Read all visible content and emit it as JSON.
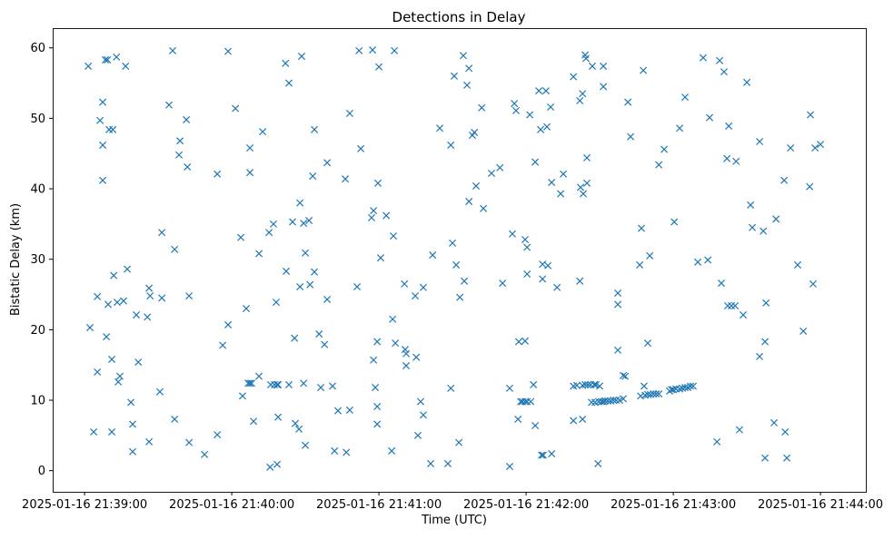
{
  "chart_data": {
    "type": "scatter",
    "title": "Detections in Delay",
    "xlabel": "Time (UTC)",
    "ylabel": "Bistatic Delay (km)",
    "x_units": "seconds after 2025-01-16 21:39:00",
    "xlim": [
      -13,
      318.5
    ],
    "ylim": [
      -3.0,
      62.8
    ],
    "xticks": [
      0,
      60,
      120,
      180,
      240,
      300
    ],
    "xtick_labels": [
      "2025-01-16 21:39:00",
      "2025-01-16 21:40:00",
      "2025-01-16 21:41:00",
      "2025-01-16 21:42:00",
      "2025-01-16 21:43:00",
      "2025-01-16 21:44:00"
    ],
    "yticks": [
      0,
      10,
      20,
      30,
      40,
      50,
      60
    ],
    "ytick_labels": [
      "0",
      "10",
      "20",
      "30",
      "40",
      "50",
      "60"
    ],
    "grid": false,
    "marker": "x",
    "color": "#1f77b4",
    "points": [
      [
        1.5,
        57.4
      ],
      [
        2.2,
        20.3
      ],
      [
        3.7,
        5.5
      ],
      [
        5.2,
        24.7
      ],
      [
        5.2,
        14.0
      ],
      [
        6.3,
        49.7
      ],
      [
        7.4,
        52.3
      ],
      [
        7.4,
        46.2
      ],
      [
        7.4,
        41.2
      ],
      [
        8.5,
        58.3
      ],
      [
        9.3,
        58.3
      ],
      [
        8.9,
        19.0
      ],
      [
        9.6,
        23.6
      ],
      [
        10,
        48.4
      ],
      [
        11.5,
        48.4
      ],
      [
        11.1,
        15.8
      ],
      [
        11.1,
        5.5
      ],
      [
        11.9,
        27.7
      ],
      [
        13,
        58.7
      ],
      [
        13.3,
        23.9
      ],
      [
        13.7,
        12.6
      ],
      [
        14.4,
        13.4
      ],
      [
        15.9,
        24.1
      ],
      [
        16.7,
        57.4
      ],
      [
        17.4,
        28.6
      ],
      [
        18.9,
        9.7
      ],
      [
        19.6,
        6.6
      ],
      [
        19.6,
        2.7
      ],
      [
        21.1,
        22.1
      ],
      [
        21.9,
        15.4
      ],
      [
        25.6,
        21.8
      ],
      [
        26.3,
        4.1
      ],
      [
        26.3,
        25.9
      ],
      [
        26.7,
        24.8
      ],
      [
        30.7,
        11.2
      ],
      [
        31.5,
        33.8
      ],
      [
        31.5,
        24.5
      ],
      [
        34.4,
        51.9
      ],
      [
        35.9,
        59.6
      ],
      [
        36.7,
        31.4
      ],
      [
        36.7,
        7.3
      ],
      [
        38.5,
        44.8
      ],
      [
        38.9,
        46.8
      ],
      [
        41.5,
        49.8
      ],
      [
        41.9,
        43.1
      ],
      [
        42.6,
        24.8
      ],
      [
        42.6,
        4.0
      ],
      [
        48.9,
        2.3
      ],
      [
        54.1,
        42.1
      ],
      [
        54.1,
        5.1
      ],
      [
        56.3,
        17.8
      ],
      [
        58.5,
        59.5
      ],
      [
        58.5,
        20.7
      ],
      [
        61.5,
        51.4
      ],
      [
        63.7,
        33.1
      ],
      [
        64.4,
        10.6
      ],
      [
        65.9,
        23.0
      ],
      [
        66.7,
        12.4
      ],
      [
        67.4,
        45.8
      ],
      [
        67.4,
        12.4
      ],
      [
        67.4,
        42.3
      ],
      [
        68.1,
        12.4
      ],
      [
        68.9,
        7.0
      ],
      [
        71.1,
        30.8
      ],
      [
        71.1,
        13.4
      ],
      [
        72.6,
        48.1
      ],
      [
        75.2,
        33.8
      ],
      [
        75.6,
        0.5
      ],
      [
        75.9,
        12.2
      ],
      [
        77,
        35.0
      ],
      [
        77.4,
        12.2
      ],
      [
        78.1,
        23.9
      ],
      [
        78.5,
        12.2
      ],
      [
        78.5,
        0.9
      ],
      [
        78.9,
        7.6
      ],
      [
        78.9,
        12.2
      ],
      [
        81.9,
        57.8
      ],
      [
        82.2,
        28.3
      ],
      [
        83.3,
        55.0
      ],
      [
        83.3,
        12.2
      ],
      [
        84.8,
        35.3
      ],
      [
        85.6,
        18.8
      ],
      [
        85.9,
        6.7
      ],
      [
        87.4,
        5.9
      ],
      [
        87.8,
        38.0
      ],
      [
        88.5,
        58.8
      ],
      [
        87.8,
        26.1
      ],
      [
        89.3,
        35.1
      ],
      [
        89.3,
        12.4
      ],
      [
        90,
        30.9
      ],
      [
        90,
        3.6
      ],
      [
        91.5,
        35.5
      ],
      [
        91.9,
        26.4
      ],
      [
        93,
        41.8
      ],
      [
        93.7,
        48.4
      ],
      [
        93.7,
        28.2
      ],
      [
        95.6,
        19.4
      ],
      [
        96.3,
        11.8
      ],
      [
        97.8,
        17.9
      ],
      [
        98.9,
        43.7
      ],
      [
        98.9,
        24.3
      ],
      [
        101.1,
        12.0
      ],
      [
        101.9,
        2.8
      ],
      [
        103.3,
        8.5
      ],
      [
        106.3,
        41.4
      ],
      [
        106.7,
        2.6
      ],
      [
        108.1,
        50.7
      ],
      [
        108.1,
        8.6
      ],
      [
        111.1,
        26.1
      ],
      [
        111.9,
        59.6
      ],
      [
        112.6,
        45.7
      ],
      [
        117,
        35.9
      ],
      [
        117.4,
        59.7
      ],
      [
        117.8,
        36.9
      ],
      [
        117.8,
        15.7
      ],
      [
        118.5,
        11.8
      ],
      [
        119.3,
        6.6
      ],
      [
        119.3,
        9.1
      ],
      [
        119.3,
        18.3
      ],
      [
        119.6,
        40.8
      ],
      [
        120,
        57.3
      ],
      [
        120.7,
        30.2
      ],
      [
        123,
        36.2
      ],
      [
        125.2,
        2.8
      ],
      [
        125.6,
        21.5
      ],
      [
        125.9,
        33.3
      ],
      [
        126.3,
        59.6
      ],
      [
        126.7,
        18.1
      ],
      [
        130.4,
        26.5
      ],
      [
        130.7,
        17.2
      ],
      [
        131.1,
        16.6
      ],
      [
        131.1,
        14.9
      ],
      [
        134.8,
        24.8
      ],
      [
        135.2,
        16.1
      ],
      [
        135.9,
        5.0
      ],
      [
        137,
        9.8
      ],
      [
        138.1,
        7.9
      ],
      [
        138.1,
        26.0
      ],
      [
        141.1,
        1.0
      ],
      [
        141.9,
        30.6
      ],
      [
        144.8,
        48.6
      ],
      [
        148.1,
        1.0
      ],
      [
        149.3,
        46.2
      ],
      [
        149.3,
        11.7
      ],
      [
        150,
        32.3
      ],
      [
        150.7,
        56.0
      ],
      [
        151.5,
        29.2
      ],
      [
        152.6,
        4.0
      ],
      [
        153,
        24.6
      ],
      [
        154.4,
        58.9
      ],
      [
        154.8,
        26.9
      ],
      [
        155.9,
        54.7
      ],
      [
        156.7,
        57.1
      ],
      [
        156.7,
        38.2
      ],
      [
        158.1,
        47.6
      ],
      [
        158.9,
        48.0
      ],
      [
        159.6,
        40.4
      ],
      [
        161.9,
        51.5
      ],
      [
        162.6,
        37.2
      ],
      [
        165.9,
        42.2
      ],
      [
        169.3,
        43.0
      ],
      [
        170.4,
        26.6
      ],
      [
        173.3,
        0.6
      ],
      [
        173.3,
        11.7
      ],
      [
        174.4,
        33.6
      ],
      [
        175.2,
        52.1
      ],
      [
        175.9,
        51.1
      ],
      [
        176.7,
        7.3
      ],
      [
        177,
        18.3
      ],
      [
        177.8,
        9.8
      ],
      [
        178.5,
        9.8
      ],
      [
        179.6,
        18.4
      ],
      [
        179.6,
        32.8
      ],
      [
        180.4,
        31.7
      ],
      [
        179.6,
        9.8
      ],
      [
        180.4,
        9.8
      ],
      [
        180.4,
        27.9
      ],
      [
        181.5,
        50.5
      ],
      [
        181.9,
        9.8
      ],
      [
        183,
        12.2
      ],
      [
        183.7,
        6.4
      ],
      [
        183.7,
        43.8
      ],
      [
        185.2,
        53.9
      ],
      [
        185.9,
        48.4
      ],
      [
        186.3,
        2.2
      ],
      [
        186.7,
        27.2
      ],
      [
        186.7,
        29.3
      ],
      [
        187,
        2.2
      ],
      [
        188.1,
        53.9
      ],
      [
        188.9,
        29.1
      ],
      [
        188.5,
        48.8
      ],
      [
        190,
        51.6
      ],
      [
        190.4,
        2.4
      ],
      [
        190.4,
        40.9
      ],
      [
        192.6,
        26.0
      ],
      [
        194.1,
        39.3
      ],
      [
        195.2,
        42.1
      ],
      [
        199.3,
        55.9
      ],
      [
        199.3,
        7.1
      ],
      [
        199.3,
        12.0
      ],
      [
        200.7,
        12.1
      ],
      [
        201.9,
        52.5
      ],
      [
        201.9,
        26.9
      ],
      [
        202.2,
        40.2
      ],
      [
        203,
        7.3
      ],
      [
        203,
        53.5
      ],
      [
        203.3,
        39.3
      ],
      [
        203,
        12.1
      ],
      [
        204.1,
        59.0
      ],
      [
        204.1,
        12.2
      ],
      [
        204.4,
        58.5
      ],
      [
        204.8,
        44.4
      ],
      [
        204.8,
        40.8
      ],
      [
        205.2,
        12.2
      ],
      [
        206.3,
        12.2
      ],
      [
        207,
        57.4
      ],
      [
        206.7,
        9.7
      ],
      [
        207.8,
        12.2
      ],
      [
        208.1,
        9.7
      ],
      [
        208.5,
        12.2
      ],
      [
        209.3,
        1.0
      ],
      [
        209.6,
        9.8
      ],
      [
        210,
        12.0
      ],
      [
        210.7,
        9.8
      ],
      [
        211.5,
        57.4
      ],
      [
        211.5,
        54.5
      ],
      [
        211.5,
        9.8
      ],
      [
        212.2,
        9.9
      ],
      [
        213.3,
        9.9
      ],
      [
        214.4,
        9.9
      ],
      [
        215.6,
        10.0
      ],
      [
        216.7,
        10.0
      ],
      [
        217.4,
        23.6
      ],
      [
        217.4,
        25.2
      ],
      [
        217.4,
        17.1
      ],
      [
        218.1,
        10.0
      ],
      [
        219.6,
        13.5
      ],
      [
        219.6,
        10.2
      ],
      [
        220.4,
        13.4
      ],
      [
        221.5,
        52.3
      ],
      [
        222.6,
        47.4
      ],
      [
        226.3,
        29.2
      ],
      [
        226.7,
        10.6
      ],
      [
        227,
        34.4
      ],
      [
        227.8,
        56.8
      ],
      [
        228.1,
        12.0
      ],
      [
        228.5,
        10.7
      ],
      [
        229.6,
        18.1
      ],
      [
        230.4,
        30.5
      ],
      [
        229.6,
        10.8
      ],
      [
        230.7,
        10.8
      ],
      [
        231.9,
        10.9
      ],
      [
        233,
        10.9
      ],
      [
        234.1,
        43.4
      ],
      [
        234.1,
        10.9
      ],
      [
        236.3,
        45.6
      ],
      [
        238.5,
        11.3
      ],
      [
        239.3,
        11.5
      ],
      [
        240,
        11.5
      ],
      [
        240.4,
        35.3
      ],
      [
        241.1,
        11.6
      ],
      [
        242.6,
        48.6
      ],
      [
        242.6,
        11.6
      ],
      [
        243.7,
        11.7
      ],
      [
        244.8,
        53.0
      ],
      [
        244.8,
        11.8
      ],
      [
        245.9,
        11.8
      ],
      [
        247,
        12.0
      ],
      [
        248.1,
        12.0
      ],
      [
        250,
        29.6
      ],
      [
        252.2,
        58.6
      ],
      [
        254.1,
        29.9
      ],
      [
        254.8,
        50.1
      ],
      [
        257.8,
        4.1
      ],
      [
        258.9,
        58.2
      ],
      [
        259.6,
        26.6
      ],
      [
        260.7,
        56.6
      ],
      [
        261.9,
        44.3
      ],
      [
        262.2,
        23.4
      ],
      [
        262.6,
        48.9
      ],
      [
        263.7,
        23.4
      ],
      [
        265.2,
        23.4
      ],
      [
        265.6,
        43.9
      ],
      [
        267,
        5.8
      ],
      [
        268.5,
        22.1
      ],
      [
        270,
        55.1
      ],
      [
        271.5,
        37.7
      ],
      [
        272.2,
        34.5
      ],
      [
        275.2,
        46.7
      ],
      [
        275.2,
        16.2
      ],
      [
        276.7,
        34.0
      ],
      [
        277.4,
        1.8
      ],
      [
        277.4,
        18.3
      ],
      [
        277.8,
        23.8
      ],
      [
        281.1,
        6.8
      ],
      [
        281.9,
        35.7
      ],
      [
        285.2,
        41.2
      ],
      [
        285.6,
        5.5
      ],
      [
        286.3,
        1.8
      ],
      [
        287.8,
        45.8
      ],
      [
        290.7,
        29.2
      ],
      [
        293,
        19.8
      ],
      [
        295.9,
        50.5
      ],
      [
        295.6,
        40.3
      ],
      [
        297,
        26.5
      ],
      [
        297.8,
        45.8
      ],
      [
        300,
        46.3
      ]
    ]
  }
}
